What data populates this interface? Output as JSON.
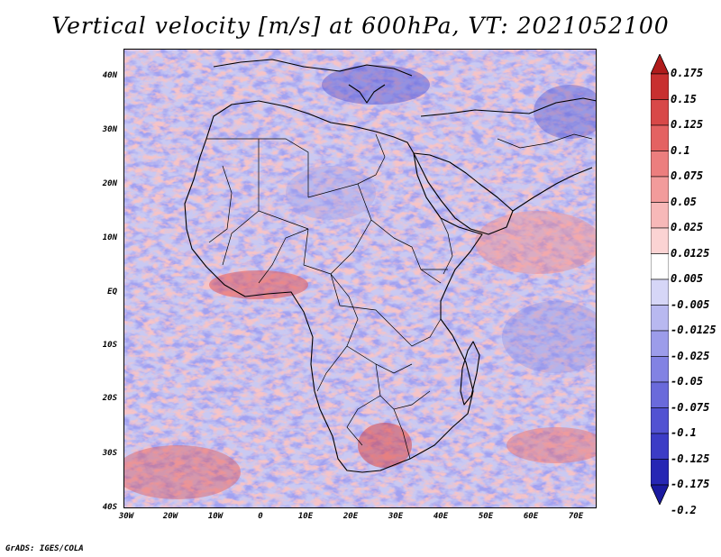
{
  "title": "Vertical velocity [m/s] at 600hPa, VT: 2021052100",
  "credit": "GrADS: IGES/COLA",
  "map": {
    "lat_range": [
      -40,
      45
    ],
    "lon_range": [
      -30,
      75
    ],
    "lat_ticks": [
      "40N",
      "30N",
      "20N",
      "10N",
      "EQ",
      "10S",
      "20S",
      "30S",
      "40S"
    ],
    "lon_ticks": [
      "30W",
      "20W",
      "10W",
      "0",
      "10E",
      "20E",
      "30E",
      "40E",
      "50E",
      "60E",
      "70E"
    ]
  },
  "colorbar": {
    "labels": [
      "0.175",
      "0.15",
      "0.125",
      "0.1",
      "0.075",
      "0.05",
      "0.025",
      "0.0125",
      "0.005",
      "-0.005",
      "-0.0125",
      "-0.025",
      "-0.05",
      "-0.075",
      "-0.1",
      "-0.125",
      "-0.175",
      "-0.2"
    ],
    "colors": [
      "#b01c1c",
      "#c83030",
      "#d84848",
      "#e46262",
      "#ec7e7e",
      "#f29b9b",
      "#f7b8b8",
      "#fbd3d3",
      "#ffffff",
      "#d6d6f7",
      "#b8b8f0",
      "#9c9cea",
      "#8282e3",
      "#6a6adb",
      "#5252d2",
      "#3c3cc6",
      "#2626b4",
      "#1a1aa0"
    ]
  }
}
